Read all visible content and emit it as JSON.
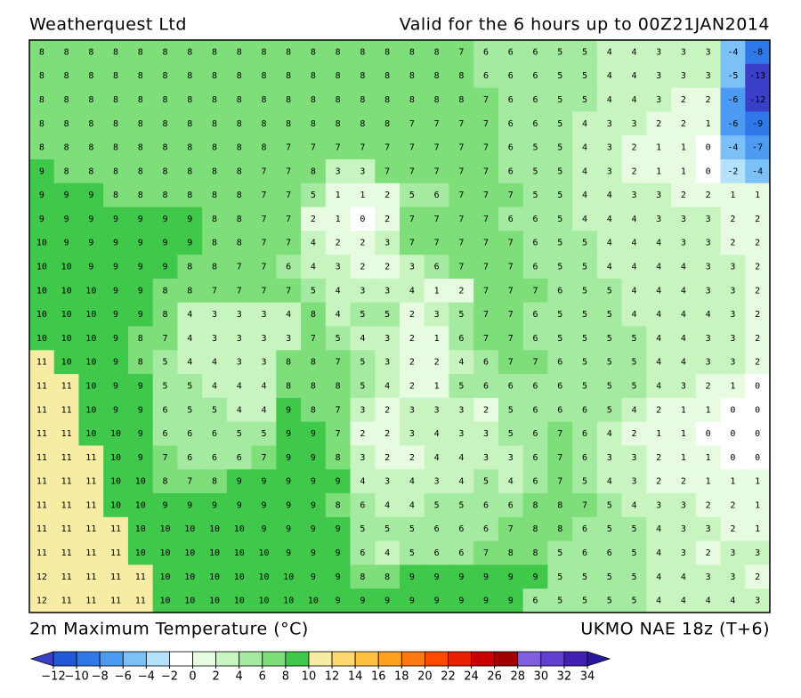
{
  "header": {
    "left": "Weatherquest Ltd",
    "right": "Valid for the 6 hours up to 00Z21JAN2014"
  },
  "footer": {
    "left": "2m Maximum Temperature (°C)",
    "right": "UKMO NAE 18z (T+6)"
  },
  "colorbar": {
    "levels": [
      {
        "value": -12,
        "label": "−12"
      },
      {
        "value": -10,
        "label": "−10"
      },
      {
        "value": -8,
        "label": "−8"
      },
      {
        "value": -6,
        "label": "−6"
      },
      {
        "value": -4,
        "label": "−4"
      },
      {
        "value": -2,
        "label": "−2"
      },
      0,
      2,
      4,
      6,
      8,
      10,
      12,
      14,
      16,
      18,
      20,
      22,
      24,
      26,
      28,
      30,
      32,
      34
    ],
    "colors": [
      "#3a3fc8",
      "#2058d8",
      "#2f78e8",
      "#4c9af2",
      "#7cc0f8",
      "#b4e2fc",
      "#ffffff",
      "#e6fbe0",
      "#c8f4c0",
      "#a4eaa0",
      "#7ede7a",
      "#40c84a",
      "#f6eca4",
      "#ffd870",
      "#ffc040",
      "#ffa020",
      "#ff7810",
      "#ff4800",
      "#e82000",
      "#c80000",
      "#a00000",
      "#8060e0",
      "#6040d0",
      "#4020b0",
      "#2818a0"
    ]
  },
  "map": {
    "rows": [
      [
        8,
        8,
        8,
        8,
        8,
        8,
        8,
        8,
        8,
        8,
        8,
        8,
        8,
        8,
        8,
        8,
        8,
        7,
        6,
        6,
        6,
        5,
        5,
        4,
        4,
        3,
        3,
        3,
        -4,
        -8
      ],
      [
        8,
        8,
        8,
        8,
        8,
        8,
        8,
        8,
        8,
        8,
        8,
        8,
        8,
        8,
        8,
        8,
        8,
        8,
        6,
        6,
        6,
        5,
        5,
        4,
        4,
        3,
        3,
        3,
        -5,
        -13
      ],
      [
        8,
        8,
        8,
        8,
        8,
        8,
        8,
        8,
        8,
        8,
        8,
        8,
        8,
        8,
        8,
        8,
        8,
        8,
        7,
        6,
        6,
        5,
        5,
        4,
        4,
        3,
        2,
        2,
        -6,
        -12
      ],
      [
        8,
        8,
        8,
        8,
        8,
        8,
        8,
        8,
        8,
        8,
        8,
        8,
        8,
        8,
        8,
        7,
        7,
        7,
        7,
        6,
        6,
        5,
        4,
        3,
        3,
        2,
        2,
        1,
        -6,
        -9
      ],
      [
        8,
        8,
        8,
        8,
        8,
        8,
        8,
        8,
        8,
        8,
        7,
        7,
        7,
        7,
        7,
        7,
        7,
        7,
        7,
        6,
        5,
        5,
        4,
        3,
        2,
        1,
        1,
        0,
        -4,
        -7
      ],
      [
        9,
        8,
        8,
        8,
        8,
        8,
        8,
        8,
        8,
        7,
        7,
        8,
        3,
        3,
        7,
        7,
        7,
        7,
        7,
        6,
        5,
        5,
        4,
        3,
        2,
        1,
        1,
        0,
        -2,
        -4
      ],
      [
        9,
        9,
        9,
        8,
        8,
        8,
        8,
        8,
        8,
        7,
        7,
        5,
        1,
        1,
        2,
        5,
        6,
        7,
        7,
        7,
        5,
        5,
        4,
        4,
        3,
        3,
        2,
        2,
        1,
        1
      ],
      [
        9,
        9,
        9,
        9,
        9,
        9,
        9,
        8,
        8,
        7,
        7,
        2,
        1,
        0,
        2,
        7,
        7,
        7,
        7,
        6,
        6,
        5,
        4,
        4,
        4,
        3,
        3,
        3,
        2,
        2
      ],
      [
        10,
        9,
        9,
        9,
        9,
        9,
        9,
        8,
        8,
        7,
        7,
        4,
        2,
        2,
        3,
        7,
        7,
        7,
        7,
        7,
        6,
        5,
        5,
        4,
        4,
        4,
        3,
        3,
        2,
        2
      ],
      [
        10,
        10,
        9,
        9,
        9,
        9,
        8,
        8,
        7,
        7,
        6,
        4,
        3,
        2,
        2,
        3,
        6,
        7,
        7,
        7,
        6,
        5,
        5,
        4,
        4,
        4,
        4,
        3,
        3,
        2
      ],
      [
        10,
        10,
        10,
        9,
        9,
        8,
        8,
        7,
        7,
        7,
        7,
        5,
        4,
        3,
        3,
        4,
        1,
        2,
        7,
        7,
        7,
        6,
        5,
        5,
        4,
        4,
        4,
        3,
        3,
        2
      ],
      [
        10,
        10,
        10,
        9,
        9,
        8,
        4,
        3,
        3,
        3,
        4,
        8,
        4,
        5,
        5,
        2,
        3,
        5,
        7,
        7,
        6,
        5,
        5,
        5,
        4,
        4,
        4,
        4,
        3,
        2
      ],
      [
        10,
        10,
        10,
        9,
        8,
        7,
        4,
        3,
        3,
        3,
        3,
        7,
        5,
        4,
        3,
        2,
        1,
        6,
        7,
        7,
        6,
        5,
        5,
        5,
        5,
        4,
        4,
        3,
        3,
        2
      ],
      [
        11,
        10,
        10,
        9,
        8,
        5,
        4,
        4,
        3,
        3,
        8,
        8,
        7,
        5,
        3,
        2,
        2,
        4,
        6,
        7,
        7,
        6,
        5,
        5,
        5,
        4,
        4,
        3,
        3,
        2
      ],
      [
        11,
        11,
        10,
        9,
        9,
        5,
        5,
        4,
        4,
        4,
        8,
        8,
        8,
        5,
        4,
        2,
        1,
        5,
        6,
        6,
        6,
        6,
        5,
        5,
        5,
        4,
        3,
        2,
        1,
        0
      ],
      [
        11,
        11,
        10,
        9,
        9,
        6,
        5,
        5,
        4,
        4,
        9,
        8,
        7,
        3,
        2,
        3,
        3,
        3,
        2,
        5,
        6,
        6,
        6,
        5,
        4,
        2,
        1,
        1,
        0,
        0
      ],
      [
        11,
        11,
        10,
        10,
        9,
        6,
        6,
        6,
        5,
        5,
        9,
        9,
        7,
        2,
        2,
        3,
        4,
        3,
        3,
        5,
        6,
        7,
        6,
        4,
        2,
        1,
        1,
        0,
        0,
        0
      ],
      [
        11,
        11,
        11,
        10,
        9,
        7,
        6,
        6,
        6,
        7,
        9,
        9,
        8,
        3,
        2,
        2,
        4,
        4,
        3,
        3,
        6,
        7,
        6,
        3,
        3,
        2,
        1,
        1,
        0,
        0
      ],
      [
        11,
        11,
        11,
        10,
        10,
        8,
        7,
        8,
        9,
        9,
        9,
        9,
        9,
        4,
        3,
        4,
        3,
        4,
        5,
        4,
        6,
        7,
        5,
        4,
        3,
        2,
        2,
        1,
        1,
        1
      ],
      [
        11,
        11,
        11,
        10,
        10,
        9,
        9,
        9,
        9,
        9,
        9,
        9,
        8,
        6,
        4,
        4,
        5,
        5,
        6,
        6,
        8,
        8,
        7,
        5,
        4,
        3,
        3,
        2,
        2,
        1
      ],
      [
        11,
        11,
        11,
        11,
        10,
        10,
        10,
        10,
        10,
        9,
        9,
        9,
        9,
        5,
        5,
        5,
        6,
        6,
        6,
        7,
        8,
        8,
        6,
        5,
        5,
        4,
        3,
        3,
        2,
        1
      ],
      [
        11,
        11,
        11,
        11,
        10,
        10,
        10,
        10,
        10,
        10,
        9,
        9,
        9,
        6,
        4,
        5,
        6,
        6,
        7,
        8,
        8,
        5,
        6,
        6,
        5,
        4,
        3,
        2,
        3,
        3
      ],
      [
        12,
        11,
        11,
        11,
        11,
        10,
        10,
        10,
        10,
        10,
        10,
        9,
        9,
        8,
        8,
        9,
        9,
        9,
        9,
        9,
        9,
        5,
        5,
        5,
        5,
        4,
        4,
        3,
        3,
        2
      ],
      [
        12,
        11,
        11,
        11,
        11,
        10,
        10,
        10,
        10,
        10,
        10,
        10,
        9,
        9,
        9,
        9,
        9,
        9,
        9,
        9,
        6,
        5,
        5,
        5,
        5,
        4,
        4,
        4,
        4,
        3
      ]
    ]
  }
}
